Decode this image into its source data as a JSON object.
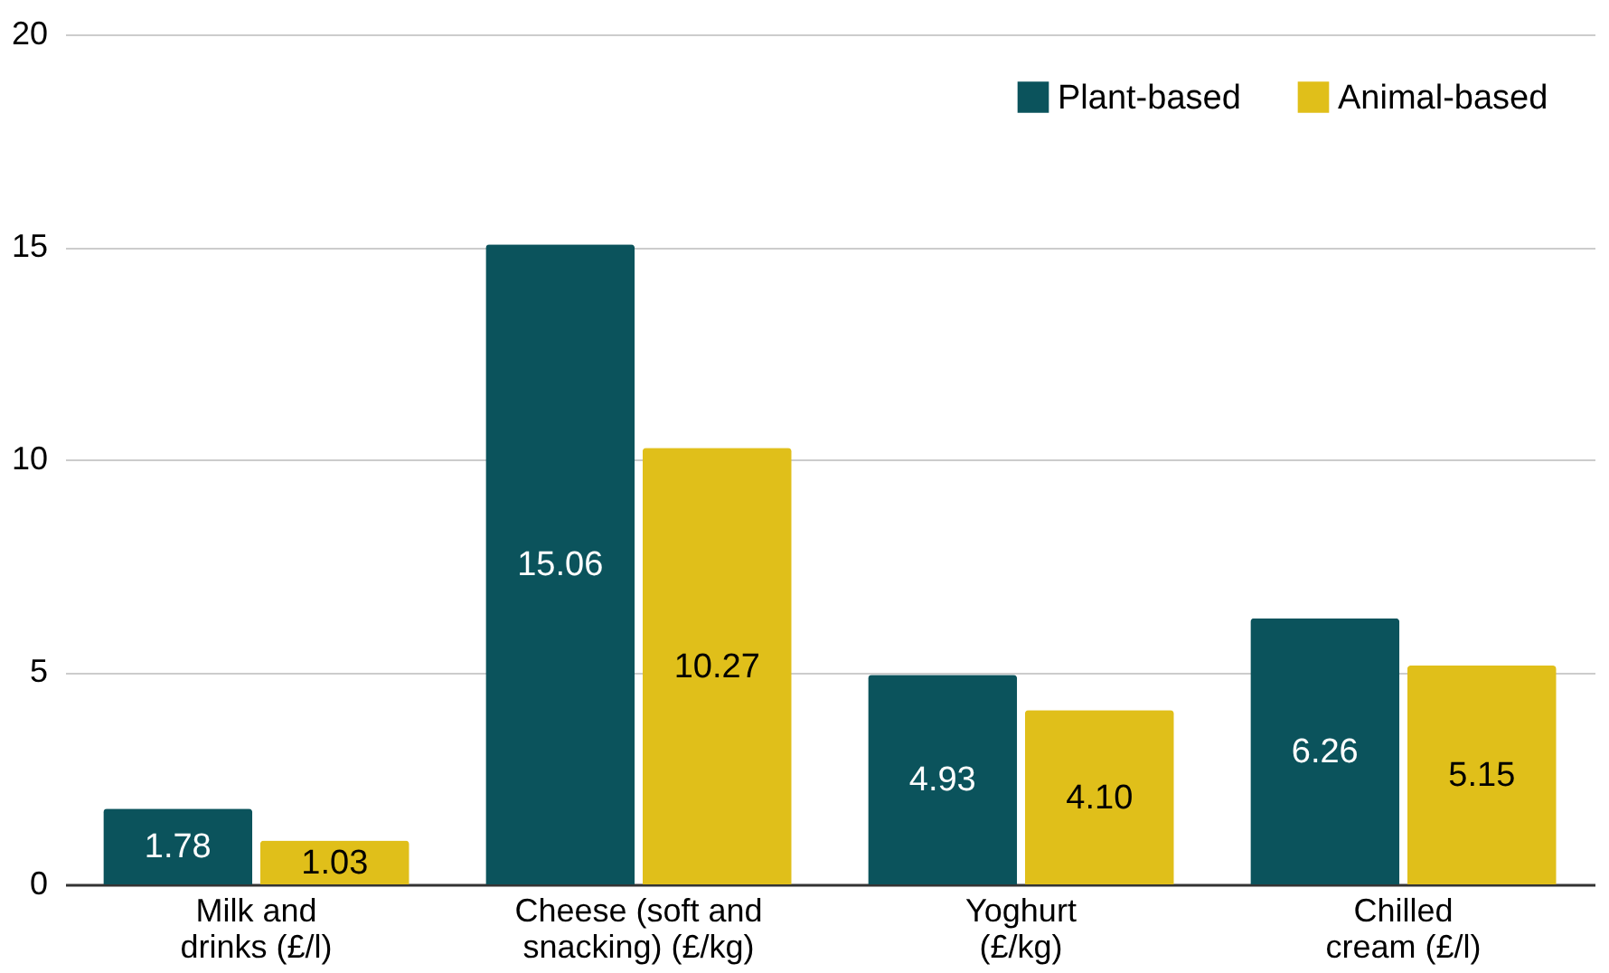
{
  "chart_data": {
    "type": "bar",
    "categories": [
      "Milk and drinks (£/l)",
      "Cheese (soft and snacking) (£/kg)",
      "Yoghurt (£/kg)",
      "Chilled cream (£/l)"
    ],
    "series": [
      {
        "name": "Plant-based",
        "color": "#0b535c",
        "values": [
          1.78,
          15.06,
          4.93,
          6.26
        ]
      },
      {
        "name": "Animal-based",
        "color": "#e0bf1a",
        "values": [
          1.03,
          10.27,
          4.1,
          5.15
        ]
      }
    ],
    "value_labels": [
      [
        "1.78",
        "15.06",
        "4.93",
        "6.26"
      ],
      [
        "1.03",
        "10.27",
        "4.10",
        "5.15"
      ]
    ],
    "ylim": [
      0,
      20
    ],
    "yticks": [
      0,
      5,
      10,
      15,
      20
    ],
    "grid": "y",
    "legend": "top right"
  }
}
